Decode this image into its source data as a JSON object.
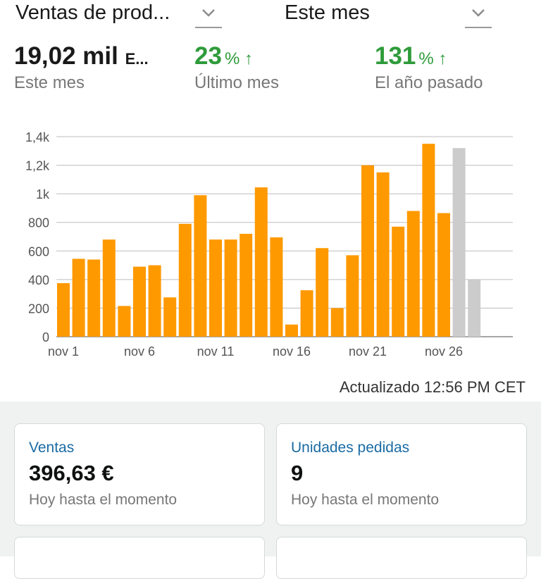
{
  "header": {
    "metric_select": "Ventas de prod...",
    "period_select": "Este mes",
    "chevron_icon": "chevron-down-icon"
  },
  "kpis": [
    {
      "value": "19,02 mil",
      "unit": "E...",
      "label": "Este mes"
    },
    {
      "value": "23",
      "pct": "% ↑",
      "label": "Último mes"
    },
    {
      "value": "131",
      "pct": "% ↑",
      "label": "El año pasado"
    }
  ],
  "colors": {
    "bar": "#ff9900",
    "bar_projected": "#cccccc",
    "positive": "#2e9b3a",
    "link": "#1a6ba3"
  },
  "chart_data": {
    "type": "bar",
    "ylim": [
      0,
      1400
    ],
    "yticks": [
      0,
      200,
      400,
      600,
      800,
      1000,
      1200,
      1400
    ],
    "ytick_labels": [
      "0",
      "200",
      "400",
      "600",
      "800",
      "1k",
      "1,2k",
      "1,4k"
    ],
    "categories": [
      "nov 1",
      "nov 2",
      "nov 3",
      "nov 4",
      "nov 5",
      "nov 6",
      "nov 7",
      "nov 8",
      "nov 9",
      "nov 10",
      "nov 11",
      "nov 12",
      "nov 13",
      "nov 14",
      "nov 15",
      "nov 16",
      "nov 17",
      "nov 18",
      "nov 19",
      "nov 20",
      "nov 21",
      "nov 22",
      "nov 23",
      "nov 24",
      "nov 25",
      "nov 26",
      "nov 27",
      "nov 28"
    ],
    "xtick_labels": [
      "nov 1",
      "nov 6",
      "nov 11",
      "nov 16",
      "nov 21",
      "nov 26"
    ],
    "values": [
      375,
      545,
      540,
      680,
      215,
      490,
      500,
      275,
      790,
      990,
      680,
      680,
      720,
      1045,
      695,
      85,
      325,
      620,
      200,
      570,
      1200,
      1150,
      770,
      880,
      1350,
      865,
      1320,
      400
    ],
    "projected_from": 26,
    "grid": true
  },
  "updated": "Actualizado 12:56 PM CET",
  "cards": [
    {
      "title": "Ventas",
      "value": "396,63 €",
      "sub": "Hoy hasta el momento"
    },
    {
      "title": "Unidades pedidas",
      "value": "9",
      "sub": "Hoy hasta el momento"
    }
  ]
}
